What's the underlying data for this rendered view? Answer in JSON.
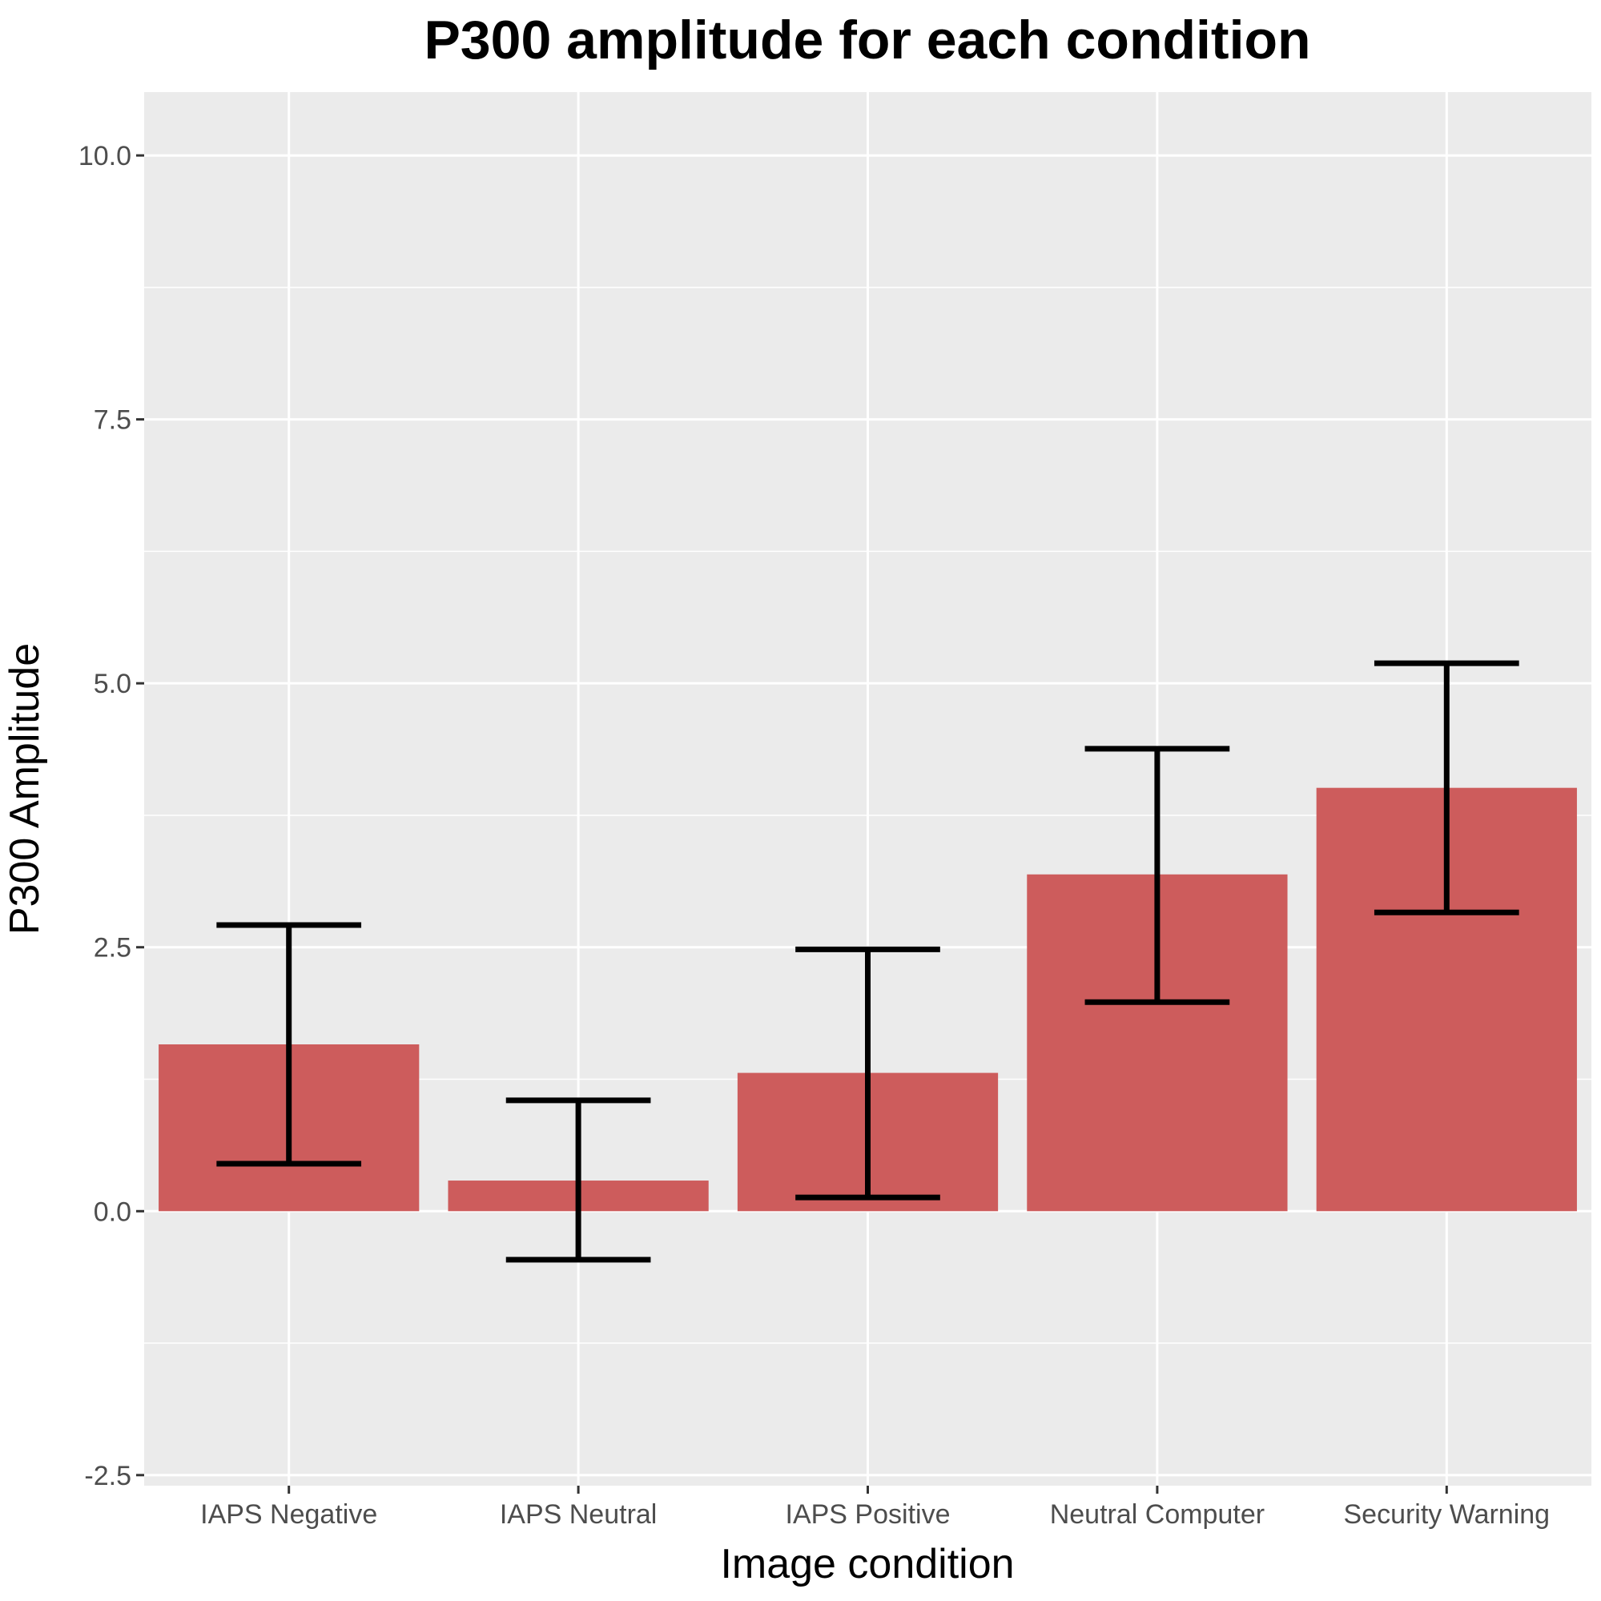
{
  "chart_data": {
    "type": "bar",
    "title": "P300 amplitude for each condition",
    "xlabel": "Image condition",
    "ylabel": "P300 Amplitude",
    "categories": [
      "IAPS Negative",
      "IAPS Neutral",
      "IAPS Positive",
      "Neutral Computer",
      "Security Warning"
    ],
    "values": [
      1.58,
      0.29,
      1.31,
      3.19,
      4.01
    ],
    "error_low": [
      0.45,
      -0.46,
      0.13,
      1.98,
      2.83
    ],
    "error_high": [
      2.71,
      1.05,
      2.48,
      4.38,
      5.19
    ],
    "ylim": [
      -2.6,
      10.6
    ],
    "yticks": [
      -2.5,
      0,
      2.5,
      5,
      7.5,
      10
    ],
    "ytick_labels": [
      "-2.5",
      "0.0",
      "2.5",
      "5.0",
      "7.5",
      "10.0"
    ],
    "grid": true,
    "legend": "none",
    "colors": {
      "bar": "#cd5c5c",
      "panel": "#ebebeb",
      "grid": "#ffffff",
      "errorbar": "#000000"
    }
  }
}
